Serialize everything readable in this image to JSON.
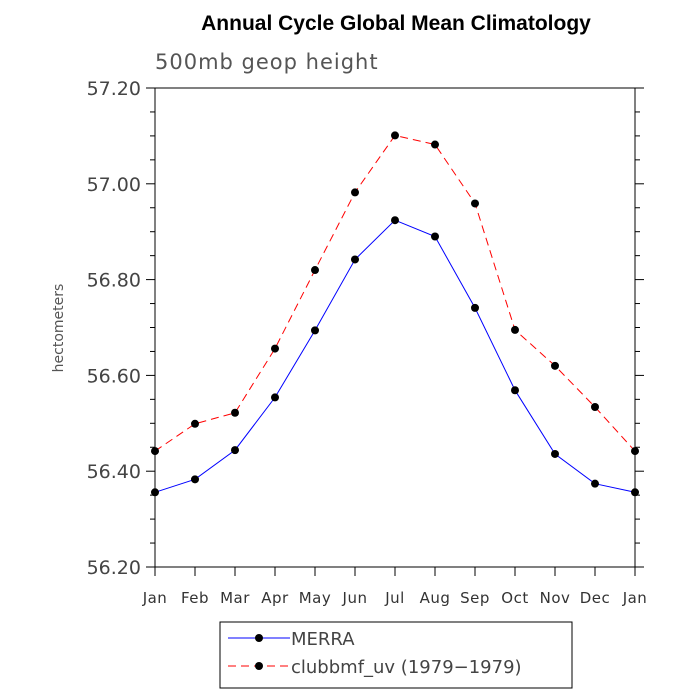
{
  "chart_data": {
    "type": "line",
    "title": "Annual Cycle Global Mean Climatology",
    "subtitle": "500mb geop height",
    "ylabel": "hectometers",
    "xlabel": "",
    "categories": [
      "Jan",
      "Feb",
      "Mar",
      "Apr",
      "May",
      "Jun",
      "Jul",
      "Aug",
      "Sep",
      "Oct",
      "Nov",
      "Dec",
      "Jan"
    ],
    "ylim": [
      56.2,
      57.2
    ],
    "yticks": [
      "56.20",
      "56.40",
      "56.60",
      "56.80",
      "57.00",
      "57.20"
    ],
    "series": [
      {
        "name": "MERRA",
        "color": "#0000ff",
        "dash": "solid",
        "values": [
          56.356,
          56.383,
          56.444,
          56.554,
          56.694,
          56.842,
          56.924,
          56.89,
          56.741,
          56.569,
          56.436,
          56.374,
          56.356
        ]
      },
      {
        "name": "clubbmf_uv (1979−1979)",
        "color": "#ff0000",
        "dash": "dashed",
        "values": [
          56.442,
          56.499,
          56.522,
          56.656,
          56.82,
          56.982,
          57.101,
          57.082,
          56.959,
          56.695,
          56.62,
          56.534,
          56.442
        ]
      }
    ],
    "legend_position": "bottom-center",
    "marker": "filled-circle",
    "marker_color": "#000000"
  }
}
